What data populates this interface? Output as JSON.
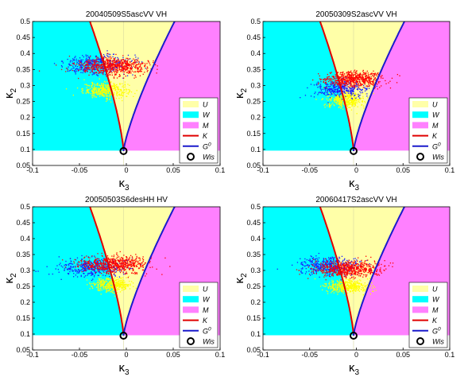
{
  "chart_data": [
    {
      "type": "scatter",
      "title": "20040509S5ascVV VH",
      "xlabel": "κ3",
      "ylabel": "κ2",
      "xlim": [
        -0.1,
        0.1
      ],
      "ylim": [
        0.05,
        0.5
      ],
      "x_ticks": [
        "-0.1",
        "-0.05",
        "0",
        "0.05",
        "0.1"
      ],
      "y_ticks": [
        "0.5",
        "0.45",
        "0.4",
        "0.35",
        "0.3",
        "0.25",
        "0.2",
        "0.15",
        "0.1",
        "0.05"
      ],
      "regions": [
        {
          "name": "U",
          "color": "#ffffa8"
        },
        {
          "name": "W",
          "color": "#00ffff"
        },
        {
          "name": "M",
          "color": "#ff80ff"
        }
      ],
      "curves": [
        {
          "name": "K",
          "color": "#e00000"
        },
        {
          "name": "G0",
          "color": "#1a1acc"
        }
      ],
      "wishart_point": {
        "name": "Wis",
        "x": -0.003,
        "y": 0.095
      },
      "series": [
        {
          "color": "#ffff00",
          "center": [
            -0.022,
            0.285
          ],
          "spread": [
            0.012,
            0.012
          ],
          "count": 420
        },
        {
          "color": "#1a1aff",
          "center": [
            -0.032,
            0.365
          ],
          "spread": [
            0.018,
            0.015
          ],
          "count": 420
        },
        {
          "color": "#ff0000",
          "center": [
            -0.013,
            0.36
          ],
          "spread": [
            0.02,
            0.014
          ],
          "count": 620
        }
      ],
      "legend_position": "bottom-right"
    },
    {
      "type": "scatter",
      "title": "20050309S2ascVV VH",
      "xlabel": "κ3",
      "ylabel": "κ2",
      "xlim": [
        -0.1,
        0.1
      ],
      "ylim": [
        0.05,
        0.5
      ],
      "x_ticks": [
        "-0.1",
        "-0.05",
        "0",
        "0.05",
        "0.1"
      ],
      "y_ticks": [
        "0.5",
        "0.45",
        "0.4",
        "0.35",
        "0.3",
        "0.25",
        "0.2",
        "0.15",
        "0.1",
        "0.05"
      ],
      "regions": [
        {
          "name": "U",
          "color": "#ffffa8"
        },
        {
          "name": "W",
          "color": "#00ffff"
        },
        {
          "name": "M",
          "color": "#ff80ff"
        }
      ],
      "curves": [
        {
          "name": "K",
          "color": "#e00000"
        },
        {
          "name": "G0",
          "color": "#1a1acc"
        }
      ],
      "wishart_point": {
        "name": "Wis",
        "x": -0.003,
        "y": 0.095
      },
      "series": [
        {
          "color": "#ffff00",
          "center": [
            -0.012,
            0.255
          ],
          "spread": [
            0.01,
            0.012
          ],
          "count": 420
        },
        {
          "color": "#1a1aff",
          "center": [
            -0.018,
            0.29
          ],
          "spread": [
            0.014,
            0.013
          ],
          "count": 380
        },
        {
          "color": "#ff0000",
          "center": [
            -0.002,
            0.32
          ],
          "spread": [
            0.016,
            0.012
          ],
          "count": 620
        }
      ],
      "legend_position": "bottom-right"
    },
    {
      "type": "scatter",
      "title": "20050503S6desHH HV",
      "xlabel": "κ3",
      "ylabel": "κ2",
      "xlim": [
        -0.1,
        0.1
      ],
      "ylim": [
        0.05,
        0.5
      ],
      "x_ticks": [
        "-0.1",
        "-0.05",
        "0",
        "0.05",
        "0.1"
      ],
      "y_ticks": [
        "0.5",
        "0.45",
        "0.4",
        "0.35",
        "0.3",
        "0.25",
        "0.2",
        "0.15",
        "0.1",
        "0.05"
      ],
      "regions": [
        {
          "name": "U",
          "color": "#ffffa8"
        },
        {
          "name": "W",
          "color": "#00ffff"
        },
        {
          "name": "M",
          "color": "#ff80ff"
        }
      ],
      "curves": [
        {
          "name": "K",
          "color": "#e00000"
        },
        {
          "name": "G0",
          "color": "#1a1acc"
        }
      ],
      "wishart_point": {
        "name": "Wis",
        "x": -0.003,
        "y": 0.095
      },
      "series": [
        {
          "color": "#ffff00",
          "center": [
            -0.015,
            0.255
          ],
          "spread": [
            0.01,
            0.011
          ],
          "count": 400
        },
        {
          "color": "#1a1aff",
          "center": [
            -0.035,
            0.31
          ],
          "spread": [
            0.018,
            0.014
          ],
          "count": 420
        },
        {
          "color": "#ff0000",
          "center": [
            -0.012,
            0.32
          ],
          "spread": [
            0.018,
            0.013
          ],
          "count": 620
        }
      ],
      "legend_position": "bottom-right"
    },
    {
      "type": "scatter",
      "title": "20060417S2ascVV VH",
      "xlabel": "κ3",
      "ylabel": "κ2",
      "xlim": [
        -0.1,
        0.1
      ],
      "ylim": [
        0.05,
        0.5
      ],
      "x_ticks": [
        "-0.1",
        "-0.05",
        "0",
        "0.05",
        "0.1"
      ],
      "y_ticks": [
        "0.5",
        "0.45",
        "0.4",
        "0.35",
        "0.3",
        "0.25",
        "0.2",
        "0.15",
        "0.1",
        "0.05"
      ],
      "regions": [
        {
          "name": "U",
          "color": "#ffffa8"
        },
        {
          "name": "W",
          "color": "#00ffff"
        },
        {
          "name": "M",
          "color": "#ff80ff"
        }
      ],
      "curves": [
        {
          "name": "K",
          "color": "#e00000"
        },
        {
          "name": "G0",
          "color": "#1a1acc"
        }
      ],
      "wishart_point": {
        "name": "Wis",
        "x": -0.003,
        "y": 0.095
      },
      "series": [
        {
          "color": "#ffff00",
          "center": [
            -0.01,
            0.25
          ],
          "spread": [
            0.012,
            0.011
          ],
          "count": 420
        },
        {
          "color": "#1a1aff",
          "center": [
            -0.03,
            0.315
          ],
          "spread": [
            0.016,
            0.014
          ],
          "count": 420
        },
        {
          "color": "#ff0000",
          "center": [
            -0.008,
            0.305
          ],
          "spread": [
            0.018,
            0.012
          ],
          "count": 600
        }
      ],
      "legend_position": "bottom-right"
    }
  ]
}
